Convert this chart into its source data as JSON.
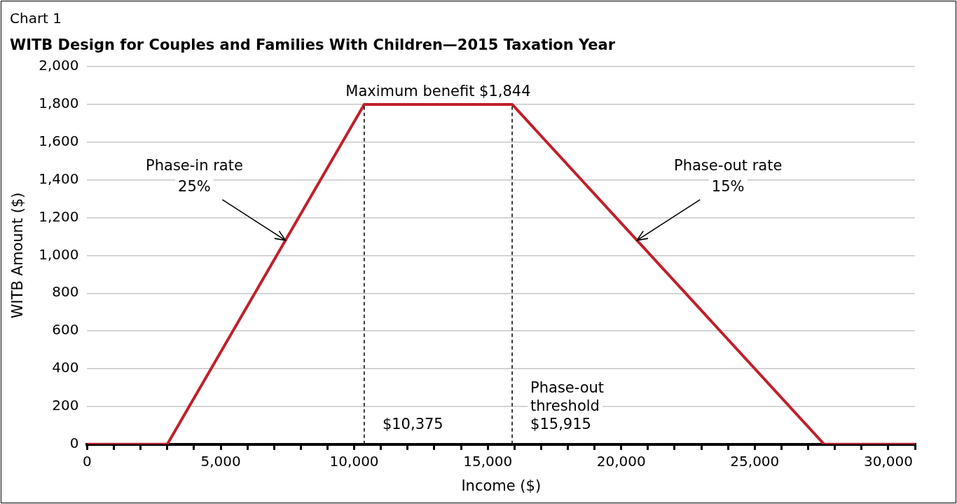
{
  "chart_data": {
    "type": "line",
    "title": "WITB Design for Couples and Families With Children—2015 Taxation Year",
    "xlabel": "Income ($)",
    "ylabel": "WITB Amount ($)",
    "x": [
      0,
      3000,
      10375,
      15915,
      27600,
      31000
    ],
    "series": [
      {
        "color": "#c0202a",
        "values": [
          0,
          0,
          1800,
          1800,
          0,
          0
        ]
      }
    ],
    "xlim": [
      0,
      31000
    ],
    "xticks": [
      0,
      {
        "value": 1000,
        "label": null
      },
      {
        "value": 2000,
        "label": null
      },
      {
        "value": 3000,
        "label": null
      },
      {
        "value": 4000,
        "label": null
      },
      {
        "value": 5000,
        "label": "5,000"
      },
      {
        "value": 6000,
        "label": null
      },
      {
        "value": 7000,
        "label": null
      },
      {
        "value": 8000,
        "label": null
      },
      {
        "value": 9000,
        "label": null
      },
      {
        "value": 10000,
        "label": "10,000"
      },
      {
        "value": 11000,
        "label": null
      },
      {
        "value": 12000,
        "label": null
      },
      {
        "value": 13000,
        "label": null
      },
      {
        "value": 14000,
        "label": null
      },
      {
        "value": 15000,
        "label": "15,000"
      },
      {
        "value": 16000,
        "label": null
      },
      {
        "value": 17000,
        "label": null
      },
      {
        "value": 18000,
        "label": null
      },
      {
        "value": 19000,
        "label": null
      },
      {
        "value": 20000,
        "label": "20,000"
      },
      {
        "value": 21000,
        "label": null
      },
      {
        "value": 22000,
        "label": null
      },
      {
        "value": 23000,
        "label": null
      },
      {
        "value": 24000,
        "label": null
      },
      {
        "value": 25000,
        "label": "25,000"
      },
      {
        "value": 26000,
        "label": null
      },
      {
        "value": 27000,
        "label": null
      },
      {
        "value": 28000,
        "label": null
      },
      {
        "value": 29000,
        "label": null
      },
      {
        "value": 30000,
        "label": "30,000"
      },
      {
        "value": 31000,
        "label": null
      }
    ],
    "ylim": [
      0,
      2000
    ],
    "yticks": [
      0,
      200,
      400,
      600,
      800,
      {
        "value": 1000,
        "label": "1,000"
      },
      {
        "value": 1200,
        "label": "1,200"
      },
      {
        "value": 1400,
        "label": "1,400"
      },
      {
        "value": 1600,
        "label": "1,600"
      },
      {
        "value": 1800,
        "label": "1,800"
      },
      {
        "value": 2000,
        "label": "2,000"
      }
    ],
    "ref_lines": [
      {
        "axis": "x",
        "value": 10375,
        "label": "$10,375",
        "color": "#000000",
        "line_style": "dashed"
      },
      {
        "axis": "x",
        "value": 15915,
        "label": "Phase-out threshold $15,915",
        "color": "#000000",
        "line_style": "dashed"
      }
    ],
    "annotations": [
      "Chart 1",
      {
        "text": "Maximum benefit $1,844",
        "x": 13145,
        "y": 1800
      },
      {
        "text": "Phase-in rate\n25%",
        "x": 7425,
        "y": 1080
      },
      {
        "text": "Phase-out rate\n15%",
        "x": 20589,
        "y": 1080
      }
    ],
    "grid": "y",
    "legend": false,
    "marker": "none",
    "line_style": "solid"
  }
}
